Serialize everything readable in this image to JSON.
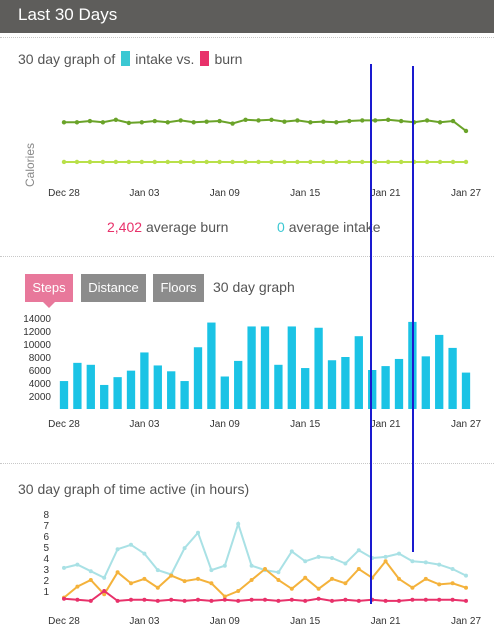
{
  "header": {
    "title": "Last 30 Days"
  },
  "calories": {
    "title_prefix": "30 day graph of",
    "intake_label": "intake vs.",
    "burn_label": "burn",
    "intake_color": "#3bc8d3",
    "burn_color": "#e8316a",
    "ylabel": "Calories",
    "avg_burn_value": "2,402",
    "avg_burn_label": "average burn",
    "avg_intake_value": "0",
    "avg_intake_label": "average intake"
  },
  "steps": {
    "tabs": [
      {
        "label": "Steps",
        "active": true
      },
      {
        "label": "Distance",
        "active": false
      },
      {
        "label": "Floors",
        "active": false
      }
    ],
    "graph_label": "30 day graph",
    "bar_color": "#1bc3e5"
  },
  "active_time": {
    "title": "30 day graph of time active (in hours)"
  },
  "x_ticks": [
    "Dec 28",
    "Jan 03",
    "Jan 09",
    "Jan 15",
    "Jan 21",
    "Jan 27"
  ],
  "chart_data": [
    {
      "type": "line",
      "ylabel": "Calories",
      "series": [
        {
          "name": "burn",
          "color": "#6aa329",
          "values": [
            0.6,
            0.6,
            0.8,
            0.6,
            1.0,
            0.5,
            0.6,
            0.8,
            0.6,
            0.9,
            0.6,
            0.7,
            0.8,
            0.4,
            1.0,
            0.9,
            1.0,
            0.7,
            0.9,
            0.6,
            0.7,
            0.6,
            0.8,
            0.9,
            0.9,
            1.0,
            0.8,
            0.6,
            0.9,
            0.6,
            0.8,
            -0.8
          ]
        },
        {
          "name": "intake",
          "color": "#b9e04a",
          "values": [
            -5.8,
            -5.8,
            -5.8,
            -5.8,
            -5.8,
            -5.8,
            -5.8,
            -5.8,
            -5.8,
            -5.8,
            -5.8,
            -5.8,
            -5.8,
            -5.8,
            -5.8,
            -5.8,
            -5.8,
            -5.8,
            -5.8,
            -5.8,
            -5.8,
            -5.8,
            -5.8,
            -5.8,
            -5.8,
            -5.8,
            -5.8,
            -5.8,
            -5.8,
            -5.8,
            -5.8,
            -5.8
          ]
        }
      ]
    },
    {
      "type": "bar",
      "ylabel": "Steps",
      "yticks": [
        2000,
        4000,
        6000,
        8000,
        10000,
        12000,
        14000
      ],
      "ylim": [
        0,
        14000
      ],
      "values": [
        4300,
        7100,
        6800,
        3700,
        4900,
        5900,
        8700,
        6700,
        5800,
        4300,
        9500,
        13300,
        5000,
        7400,
        12700,
        12700,
        6800,
        12700,
        6300,
        12500,
        7500,
        8000,
        11200,
        6000,
        6600,
        7700,
        13400,
        8100,
        11400,
        9400,
        5600
      ]
    },
    {
      "type": "line",
      "ylabel": "Hours",
      "yticks": [
        1,
        2,
        3,
        4,
        5,
        6,
        7,
        8
      ],
      "ylim": [
        0,
        8
      ],
      "series": [
        {
          "name": "",
          "color": "#a9e1e5",
          "values": [
            3.1,
            3.4,
            2.8,
            2.2,
            4.8,
            5.2,
            4.4,
            2.9,
            2.5,
            4.9,
            6.3,
            2.9,
            3.3,
            7.1,
            3.3,
            2.9,
            2.7,
            4.6,
            3.7,
            4.1,
            4.0,
            3.5,
            4.7,
            4.0,
            4.1,
            4.4,
            3.7,
            3.6,
            3.4,
            3.0,
            2.4
          ]
        },
        {
          "name": "",
          "color": "#f4b23b",
          "values": [
            0.4,
            1.4,
            2.0,
            0.7,
            2.7,
            1.7,
            2.1,
            1.3,
            2.4,
            1.9,
            2.1,
            1.7,
            0.5,
            1.0,
            2.0,
            3.0,
            2.0,
            1.2,
            2.2,
            1.2,
            2.1,
            1.7,
            3.0,
            2.2,
            3.7,
            2.1,
            1.3,
            2.1,
            1.6,
            1.7,
            1.3
          ]
        },
        {
          "name": "",
          "color": "#e8316a",
          "values": [
            0.3,
            0.2,
            0.1,
            1.0,
            0.1,
            0.2,
            0.2,
            0.1,
            0.2,
            0.1,
            0.2,
            0.1,
            0.2,
            0.1,
            0.2,
            0.2,
            0.1,
            0.2,
            0.1,
            0.3,
            0.1,
            0.2,
            0.1,
            0.2,
            0.1,
            0.1,
            0.2,
            0.2,
            0.2,
            0.2,
            0.1
          ]
        }
      ]
    }
  ]
}
